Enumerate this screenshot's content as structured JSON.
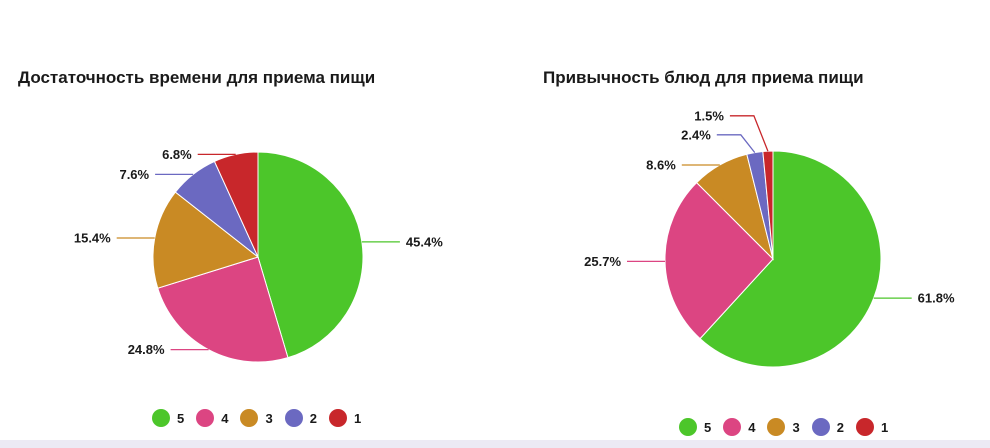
{
  "colors": {
    "5": "#4cc62a",
    "4": "#dc4582",
    "3": "#c98a24",
    "2": "#6b69c1",
    "1": "#c8272b"
  },
  "chart_data": [
    {
      "type": "pie",
      "title": "Достаточность времени для приема пищи",
      "categories": [
        "5",
        "4",
        "3",
        "2",
        "1"
      ],
      "values": [
        45.4,
        24.8,
        15.4,
        7.6,
        6.8
      ],
      "labels": [
        "45.4%",
        "24.8%",
        "15.4%",
        "7.6%",
        "6.8%"
      ],
      "legend": "bottom"
    },
    {
      "type": "pie",
      "title": "Привычность блюд для приема пищи",
      "categories": [
        "5",
        "4",
        "3",
        "2",
        "1"
      ],
      "values": [
        61.8,
        25.7,
        8.6,
        2.4,
        1.5
      ],
      "labels": [
        "61.8%",
        "25.7%",
        "8.6%",
        "2.4%",
        "1.5%"
      ],
      "legend": "bottom"
    }
  ]
}
